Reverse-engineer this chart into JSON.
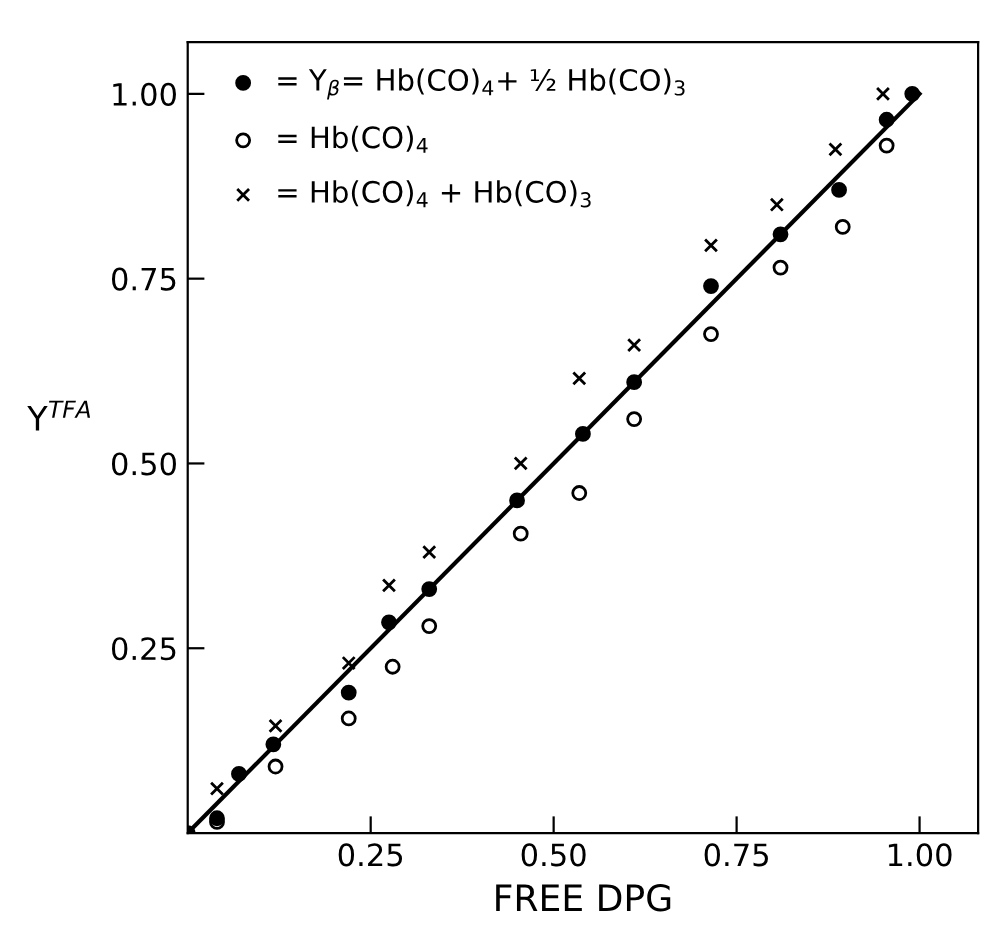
{
  "chart_data": {
    "type": "scatter",
    "xlabel": "FREE DPG",
    "ylabel": "Y$^{TFA}$",
    "xlim": [
      0,
      1.08
    ],
    "ylim": [
      0,
      1.07
    ],
    "xticks": [
      0.25,
      {
        "value": 0.5,
        "label": "0.50"
      },
      0.75,
      {
        "value": 1,
        "label": "1.00"
      }
    ],
    "yticks": [
      0.25,
      {
        "value": 0.5,
        "label": "0.50"
      },
      0.75,
      {
        "value": 1,
        "label": "1.00"
      }
    ],
    "grid": false,
    "legend": "top left",
    "series": [
      {
        "name": "= Y$_{β}$= Hb(CO)$_{4}$+ ½ Hb(CO)$_{3}$",
        "color": "#000000",
        "marker": "circle",
        "x": [
          0,
          0.04,
          0.07,
          0.117,
          0.22,
          0.275,
          0.33,
          0.45,
          0.54,
          0.61,
          0.715,
          0.81,
          0.89,
          0.955,
          0.99
        ],
        "values": [
          0,
          0.02,
          0.08,
          0.12,
          0.19,
          0.285,
          0.33,
          0.45,
          0.54,
          0.61,
          0.74,
          0.81,
          0.87,
          0.965,
          1.0
        ]
      },
      {
        "name": "= Hb(CO)$_{4}$",
        "color": "#ffffff",
        "marker": "circle",
        "x": [
          0.04,
          0.12,
          0.22,
          0.28,
          0.33,
          0.455,
          0.535,
          0.61,
          0.715,
          0.81,
          0.895,
          0.955
        ],
        "values": [
          0.015,
          0.09,
          0.155,
          0.225,
          0.28,
          0.405,
          0.46,
          0.56,
          0.675,
          0.765,
          0.82,
          0.93
        ]
      },
      {
        "name": "= Hb(CO)$_{4}$ + Hb(CO)$_{3}$",
        "color": "#000000",
        "marker": "cross",
        "x": [
          0.04,
          0.12,
          0.22,
          0.275,
          0.33,
          0.455,
          0.535,
          0.61,
          0.715,
          0.805,
          0.885,
          0.95
        ],
        "values": [
          0.06,
          0.145,
          0.23,
          0.335,
          0.38,
          0.5,
          0.615,
          0.66,
          0.795,
          0.85,
          0.925,
          1.0
        ]
      },
      {
        "type": "line",
        "color": "#000000",
        "marker": "none",
        "x": [
          0,
          0.5,
          1
        ],
        "values": [
          0,
          0.5,
          1
        ]
      }
    ]
  }
}
